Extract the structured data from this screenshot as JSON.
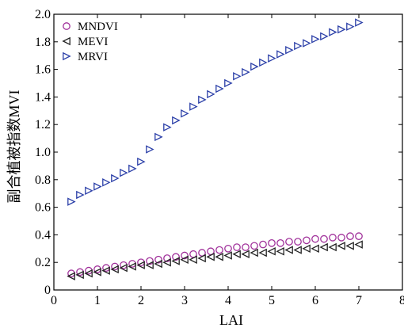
{
  "chart_data": {
    "type": "scatter",
    "xlabel": "LAI",
    "ylabel": "副合植被指数MVI",
    "xlim": [
      0,
      8
    ],
    "ylim": [
      0,
      2.0
    ],
    "xticks": [
      "0",
      "1",
      "2",
      "3",
      "4",
      "5",
      "6",
      "7",
      "8"
    ],
    "yticks": [
      "0",
      "0.2",
      "0.4",
      "0.6",
      "0.8",
      "1.0",
      "1.2",
      "1.4",
      "1.6",
      "1.8",
      "2.0"
    ],
    "grid": false,
    "legend_position": "top-left",
    "x": [
      0.4,
      0.6,
      0.8,
      1.0,
      1.2,
      1.4,
      1.6,
      1.8,
      2.0,
      2.2,
      2.4,
      2.6,
      2.8,
      3.0,
      3.2,
      3.4,
      3.6,
      3.8,
      4.0,
      4.2,
      4.4,
      4.6,
      4.8,
      5.0,
      5.2,
      5.4,
      5.6,
      5.8,
      6.0,
      6.2,
      6.4,
      6.6,
      6.8,
      7.0
    ],
    "series": [
      {
        "name": "MNDVI",
        "marker": "circle",
        "color": "#a0309a",
        "values": [
          0.12,
          0.13,
          0.14,
          0.15,
          0.16,
          0.17,
          0.18,
          0.19,
          0.2,
          0.21,
          0.22,
          0.23,
          0.24,
          0.25,
          0.26,
          0.27,
          0.28,
          0.29,
          0.3,
          0.31,
          0.31,
          0.32,
          0.33,
          0.34,
          0.34,
          0.35,
          0.35,
          0.36,
          0.37,
          0.37,
          0.38,
          0.38,
          0.39,
          0.39
        ]
      },
      {
        "name": "MEVI",
        "marker": "triangle-left",
        "color": "#222222",
        "values": [
          0.1,
          0.11,
          0.12,
          0.13,
          0.14,
          0.15,
          0.16,
          0.17,
          0.18,
          0.18,
          0.19,
          0.2,
          0.21,
          0.22,
          0.22,
          0.23,
          0.24,
          0.24,
          0.25,
          0.26,
          0.26,
          0.27,
          0.27,
          0.28,
          0.28,
          0.29,
          0.29,
          0.3,
          0.3,
          0.31,
          0.31,
          0.32,
          0.32,
          0.33
        ]
      },
      {
        "name": "MRVI",
        "marker": "triangle-right",
        "color": "#2b3fa8",
        "values": [
          0.64,
          0.69,
          0.72,
          0.75,
          0.78,
          0.81,
          0.85,
          0.88,
          0.93,
          1.02,
          1.11,
          1.18,
          1.23,
          1.28,
          1.33,
          1.38,
          1.42,
          1.46,
          1.5,
          1.55,
          1.58,
          1.62,
          1.65,
          1.68,
          1.71,
          1.74,
          1.77,
          1.79,
          1.82,
          1.84,
          1.87,
          1.89,
          1.91,
          1.94
        ]
      }
    ]
  }
}
